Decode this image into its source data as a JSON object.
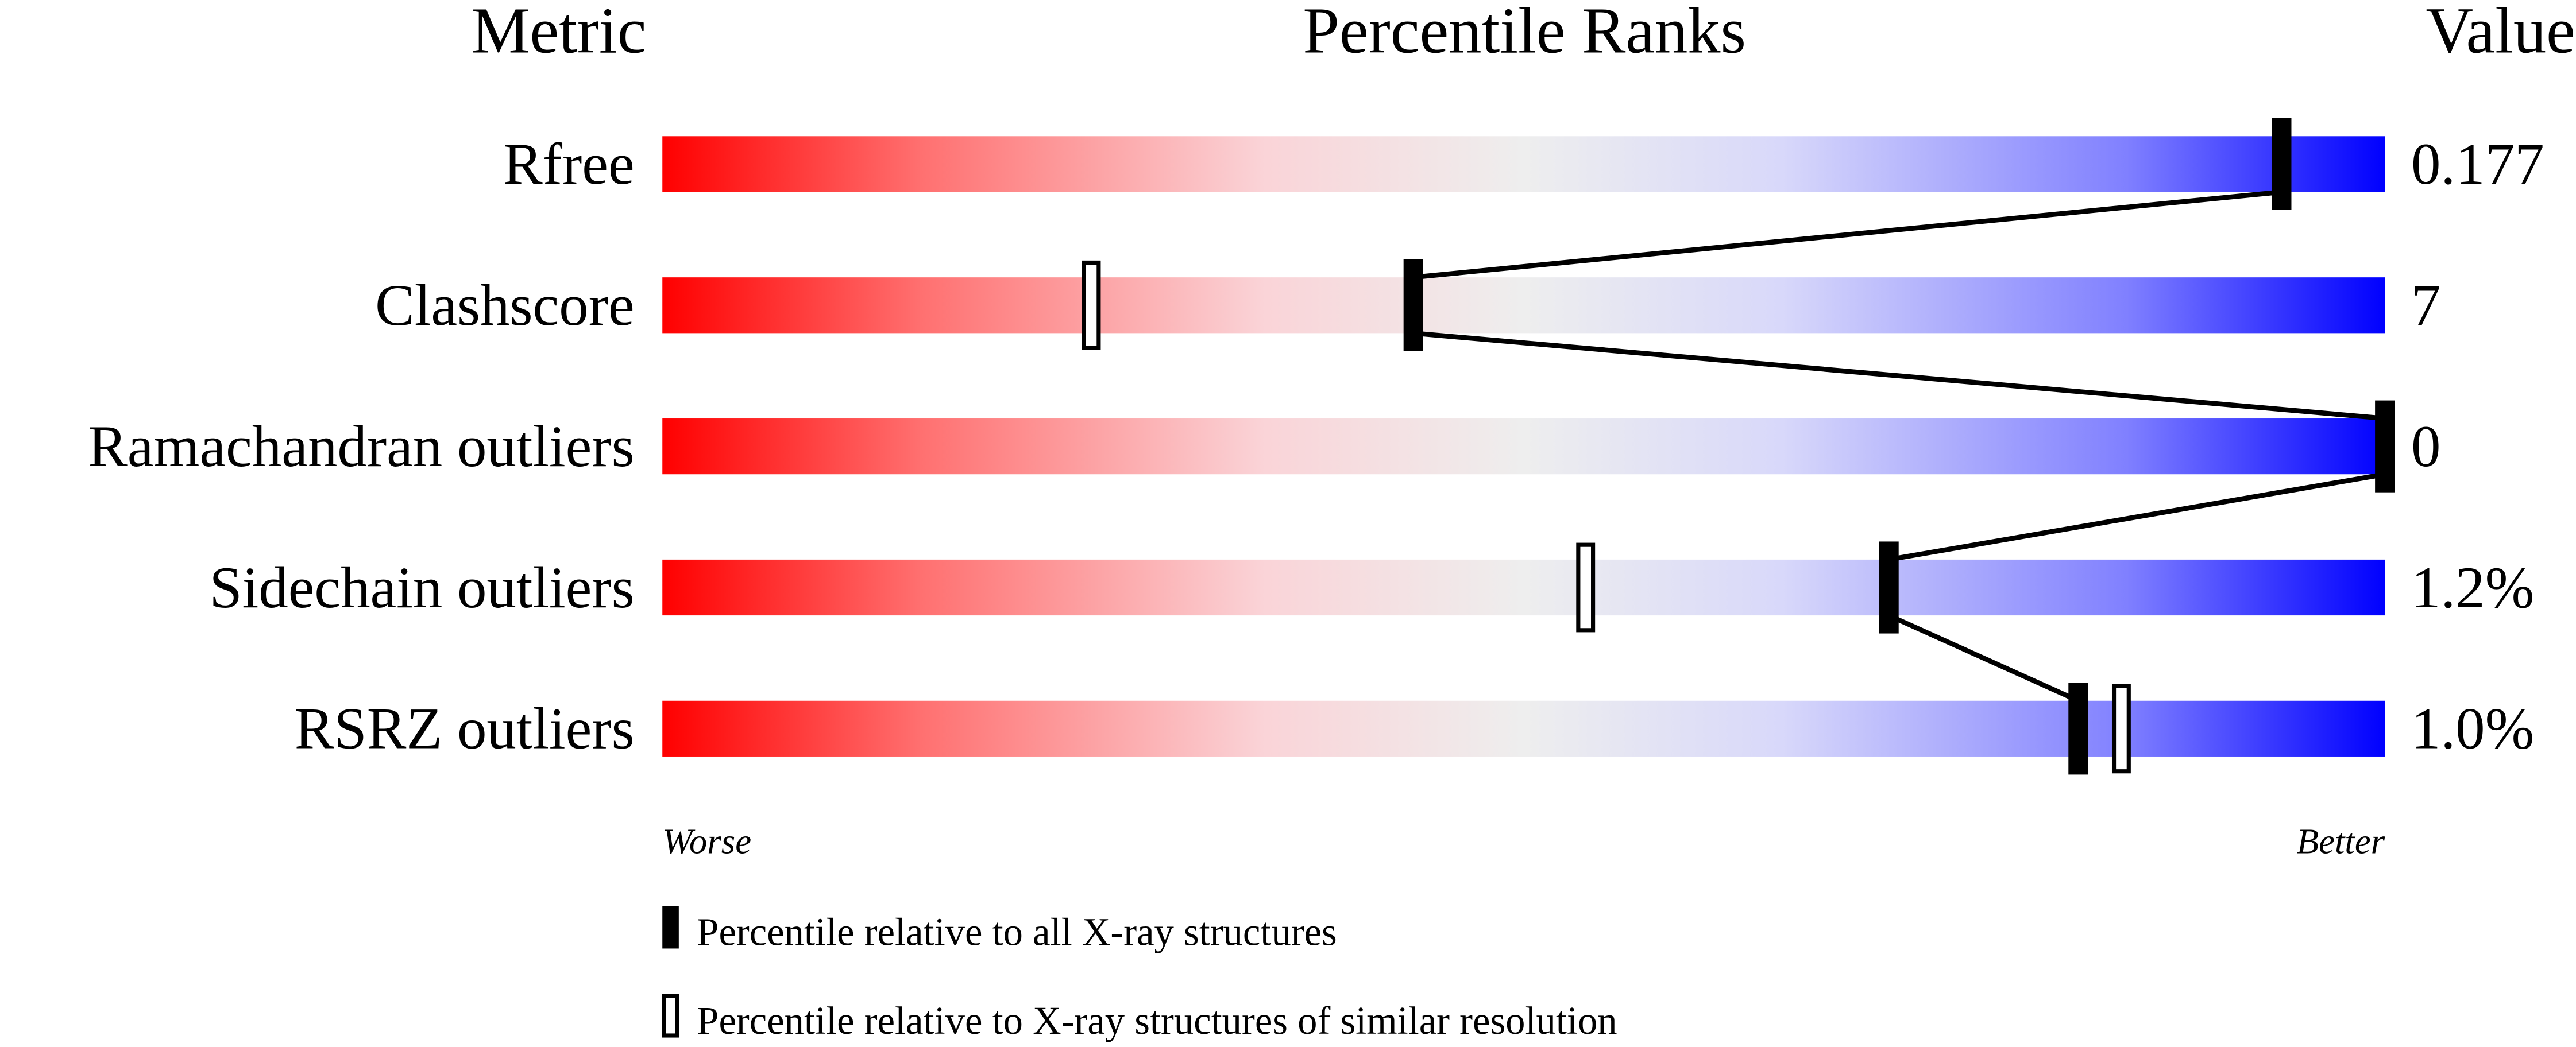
{
  "chart_data": {
    "type": "percentile-slider",
    "headers": {
      "metric": "Metric",
      "percentile": "Percentile Ranks",
      "value": "Value"
    },
    "xlim": [
      0,
      100
    ],
    "axis_labels": {
      "left": "Worse",
      "right": "Better"
    },
    "gradient_colors": [
      "#ff0000",
      "#ff7070",
      "#fad4d8",
      "#eeeeee",
      "#d8d8fa",
      "#8080ff",
      "#0000ff"
    ],
    "metrics": [
      {
        "label": "Rfree",
        "value": "0.177",
        "percentile_all": 94,
        "percentile_similar": null
      },
      {
        "label": "Clashscore",
        "value": "7",
        "percentile_all": 43.6,
        "percentile_similar": 24.9
      },
      {
        "label": "Ramachandran outliers",
        "value": "0",
        "percentile_all": 100,
        "percentile_similar": null
      },
      {
        "label": "Sidechain outliers",
        "value": "1.2%",
        "percentile_all": 71.2,
        "percentile_similar": 53.6
      },
      {
        "label": "RSRZ outliers",
        "value": "1.0%",
        "percentile_all": 82.2,
        "percentile_similar": 84.7
      }
    ],
    "legend": {
      "all": "Percentile relative to all X-ray structures",
      "similar": "Percentile relative to X-ray structures of similar resolution"
    }
  }
}
